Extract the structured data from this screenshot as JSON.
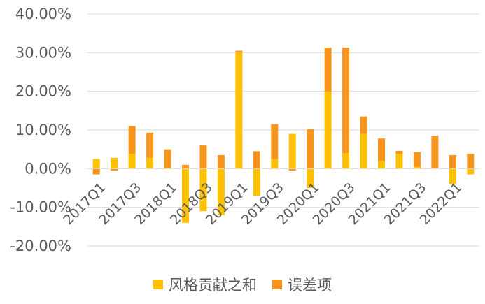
{
  "chart_data": {
    "type": "bar",
    "stacked": true,
    "categories": [
      "2017Q1",
      "2017Q2",
      "2017Q3",
      "2017Q4",
      "2018Q1",
      "2018Q2",
      "2018Q3",
      "2018Q4",
      "2019Q1",
      "2019Q2",
      "2019Q3",
      "2019Q4",
      "2020Q1",
      "2020Q2",
      "2020Q3",
      "2020Q4",
      "2021Q1",
      "2021Q2",
      "2021Q3",
      "2021Q4",
      "2022Q1",
      "2022Q2"
    ],
    "x_tick_labels": [
      "2017Q1",
      "2017Q3",
      "2018Q1",
      "2018Q3",
      "2019Q1",
      "2019Q3",
      "2020Q1",
      "2020Q3",
      "2021Q1",
      "2021Q3",
      "2022Q1"
    ],
    "series": [
      {
        "name": "风格贡献之和",
        "color": "#FFC000",
        "values": [
          2.5,
          2.8,
          3.8,
          2.8,
          0.0,
          -14.0,
          -11.0,
          -12.0,
          30.0,
          -7.0,
          2.5,
          9.0,
          -5.0,
          20.0,
          4.0,
          9.0,
          2.0,
          3.8,
          0.5,
          0.0,
          -4.0,
          -1.5
        ]
      },
      {
        "name": "误差项",
        "color": "#F7941D",
        "values": [
          -1.5,
          -0.5,
          7.2,
          6.5,
          5.0,
          1.0,
          6.0,
          3.5,
          0.5,
          4.5,
          9.0,
          -0.5,
          10.2,
          11.3,
          27.3,
          4.5,
          5.8,
          0.8,
          3.8,
          8.5,
          3.5,
          3.8
        ]
      }
    ],
    "ylim": [
      -20,
      40
    ],
    "yticks": [
      "-20.00%",
      "-10.00%",
      "0.00%",
      "10.00%",
      "20.00%",
      "30.00%",
      "40.00%"
    ],
    "ytick_values": [
      -20,
      -10,
      0,
      10,
      20,
      30,
      40
    ],
    "grid": true,
    "legend_position": "bottom"
  }
}
